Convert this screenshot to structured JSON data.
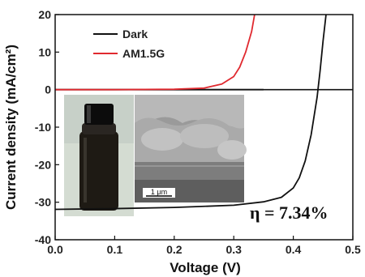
{
  "chart_data": {
    "type": "line",
    "xlabel": "Voltage (V)",
    "ylabel": "Current density (mA/cm²)",
    "xlim": [
      0.0,
      0.5
    ],
    "ylim": [
      -40,
      20
    ],
    "xticks": [
      "0.0",
      "0.1",
      "0.2",
      "0.3",
      "0.4",
      "0.5"
    ],
    "yticks": [
      "-40",
      "-30",
      "-20",
      "-10",
      "0",
      "10",
      "20"
    ],
    "legend_position": "top-left",
    "annotation": "η = 7.34%",
    "series": [
      {
        "name": "Dark",
        "color": "#111111",
        "x": [
          0.0,
          0.1,
          0.2,
          0.25,
          0.3,
          0.32,
          0.34,
          0.35
        ],
        "y": [
          0,
          0,
          0,
          0,
          0,
          0,
          0,
          0
        ]
      },
      {
        "name": "AM1.5G",
        "color": "#e0292f",
        "x": [
          0.0,
          0.1,
          0.2,
          0.25,
          0.28,
          0.3,
          0.31,
          0.32,
          0.33,
          0.335
        ],
        "y": [
          0,
          0,
          0.1,
          0.4,
          1.5,
          3.5,
          6.0,
          10.0,
          15.5,
          20
        ]
      },
      {
        "name": "",
        "color": "#111111",
        "x": [
          0.0,
          0.1,
          0.2,
          0.3,
          0.35,
          0.38,
          0.4,
          0.41,
          0.42,
          0.43,
          0.44,
          0.445,
          0.45,
          0.455
        ],
        "y": [
          -31.9,
          -31.7,
          -31.4,
          -30.8,
          -29.9,
          -28.7,
          -26.2,
          -23.5,
          -19.0,
          -12.0,
          -2.0,
          5.0,
          13.0,
          20.0
        ]
      }
    ]
  },
  "inset": {
    "scale_bar_label": "1 μm"
  }
}
